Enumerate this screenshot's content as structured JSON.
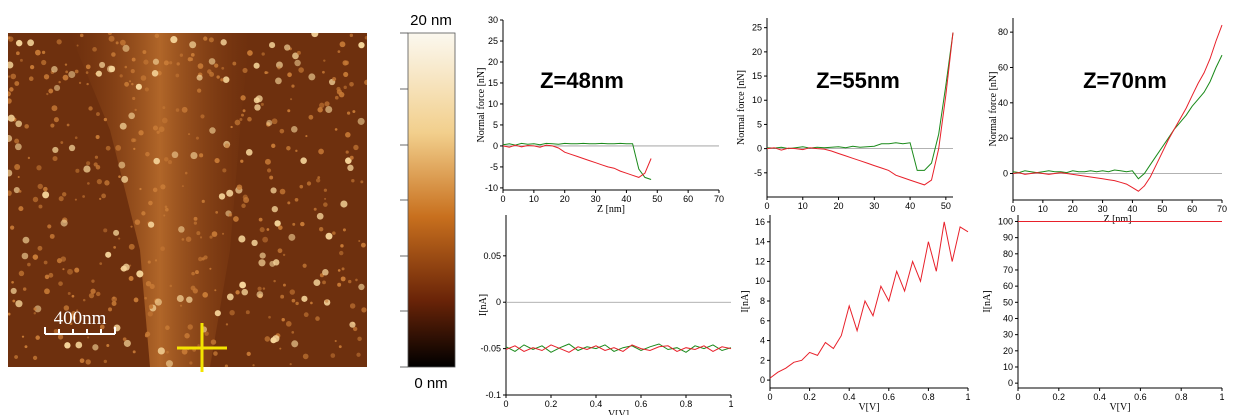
{
  "image": {
    "scale_bar_label": "400nm"
  },
  "colorbar": {
    "max_label": "20 nm",
    "min_label": "0 nm"
  },
  "chart_data": [
    {
      "type": "line",
      "annotation": "Z=48nm",
      "x_label": "Z [nm]",
      "y_label": "Normal force [nN]",
      "xlim": [
        0,
        70
      ],
      "xticks": [
        0,
        10,
        20,
        30,
        40,
        50,
        60,
        70
      ],
      "ylim": [
        -10.5,
        30
      ],
      "yticks": [
        -10,
        -5,
        0,
        5,
        10,
        15,
        20,
        25,
        30
      ],
      "hline": 0,
      "x": [
        0,
        2,
        4,
        6,
        8,
        10,
        12,
        14,
        16,
        18,
        20,
        22,
        24,
        26,
        28,
        30,
        32,
        34,
        36,
        38,
        40,
        42,
        44,
        46,
        48
      ],
      "series": [
        {
          "color": "#1a8a1a",
          "values": [
            0.3,
            0.5,
            0.2,
            0.6,
            0.4,
            0.5,
            0.3,
            0.6,
            0.5,
            0.4,
            0.6,
            0.5,
            0.5,
            0.6,
            0.5,
            0.5,
            0.6,
            0.5,
            0.5,
            0.6,
            0.5,
            0.5,
            -5.5,
            -7.5,
            -8
          ]
        },
        {
          "color": "#e8202a",
          "values": [
            0,
            -0.3,
            0.2,
            -0.2,
            0.1,
            0,
            -0.3,
            0.2,
            0,
            -0.5,
            -1.5,
            -2,
            -2.5,
            -3,
            -3.5,
            -4,
            -4.5,
            -5,
            -5.3,
            -6,
            -6.5,
            -7,
            -7.5,
            -6.5,
            -3
          ]
        }
      ]
    },
    {
      "type": "line",
      "annotation": "Z=55nm",
      "y_label": "Normal force [nN]",
      "xlim": [
        0,
        52
      ],
      "xticks": [
        0,
        10,
        20,
        30,
        40,
        50
      ],
      "ylim": [
        -10,
        27
      ],
      "yticks": [
        -5,
        0,
        5,
        10,
        15,
        20,
        25
      ],
      "hline": 0,
      "x": [
        0,
        2,
        4,
        6,
        8,
        10,
        12,
        14,
        16,
        18,
        20,
        22,
        24,
        26,
        28,
        30,
        32,
        34,
        36,
        38,
        40,
        42,
        44,
        46,
        48,
        50,
        52
      ],
      "series": [
        {
          "color": "#1a8a1a",
          "values": [
            0.2,
            0.1,
            0.3,
            0,
            0.2,
            0.4,
            0.1,
            0.3,
            0.2,
            0.3,
            0.4,
            0.2,
            0.5,
            0.3,
            0.4,
            0.5,
            1,
            1,
            1.2,
            1,
            1.2,
            -4.5,
            -4.5,
            -3,
            3,
            13,
            24
          ]
        },
        {
          "color": "#e8202a",
          "values": [
            0,
            0.2,
            -0.3,
            0.1,
            0,
            -0.2,
            0.2,
            0,
            -0.1,
            -0.5,
            -1,
            -1.5,
            -2,
            -2.5,
            -3,
            -3.5,
            -4,
            -4.5,
            -5.5,
            -6,
            -6.5,
            -7,
            -7.5,
            -6.5,
            0,
            11,
            24
          ]
        }
      ]
    },
    {
      "type": "line",
      "annotation": "Z=70nm",
      "x_label": "Z [nm]",
      "y_label": "Normal force [nN]",
      "xlim": [
        0,
        70
      ],
      "xticks": [
        0,
        10,
        20,
        30,
        40,
        50,
        60,
        70
      ],
      "ylim": [
        -15,
        88
      ],
      "yticks": [
        0,
        20,
        40,
        60,
        80
      ],
      "hline": 0,
      "x": [
        0,
        2,
        4,
        6,
        8,
        10,
        12,
        14,
        16,
        18,
        20,
        22,
        24,
        26,
        28,
        30,
        32,
        34,
        36,
        38,
        40,
        42,
        44,
        46,
        48,
        50,
        52,
        54,
        56,
        58,
        60,
        62,
        64,
        66,
        68,
        70
      ],
      "series": [
        {
          "color": "#1a8a1a",
          "values": [
            1,
            0.5,
            1.5,
            1,
            0.5,
            1,
            1.5,
            1,
            1,
            0.5,
            1.5,
            1,
            1,
            1.5,
            1,
            1.5,
            1,
            2,
            1.5,
            1,
            1.5,
            -3,
            0,
            5,
            10,
            15,
            20,
            25,
            29,
            33,
            38,
            42,
            46,
            52,
            60,
            67
          ]
        },
        {
          "color": "#e8202a",
          "values": [
            0,
            0.5,
            -0.5,
            0,
            0.5,
            0,
            -0.5,
            0,
            0.5,
            0,
            -0.5,
            -1,
            -1.5,
            -2,
            -2.5,
            -3,
            -3.5,
            -4,
            -5,
            -6,
            -8,
            -10,
            -7,
            -2,
            5,
            12,
            19,
            25,
            31,
            37,
            44,
            51,
            57,
            65,
            75,
            84
          ]
        }
      ]
    },
    {
      "type": "line",
      "x_label": "V[V]",
      "y_label": "I[nA]",
      "xlim": [
        0,
        1
      ],
      "xticks": [
        0,
        0.2,
        0.4,
        0.6,
        0.8,
        1
      ],
      "ylim": [
        -0.1,
        0.094
      ],
      "yticks": [
        -0.1,
        -0.05,
        0,
        0.05
      ],
      "hline": 0,
      "x": [
        0,
        0.04,
        0.08,
        0.12,
        0.16,
        0.2,
        0.24,
        0.28,
        0.32,
        0.36,
        0.4,
        0.44,
        0.48,
        0.52,
        0.56,
        0.6,
        0.64,
        0.68,
        0.72,
        0.76,
        0.8,
        0.84,
        0.88,
        0.92,
        0.96,
        1
      ],
      "series": [
        {
          "color": "#1a8a1a",
          "values": [
            -0.048,
            -0.053,
            -0.046,
            -0.051,
            -0.047,
            -0.054,
            -0.049,
            -0.045,
            -0.052,
            -0.048,
            -0.05,
            -0.046,
            -0.053,
            -0.049,
            -0.047,
            -0.052,
            -0.048,
            -0.045,
            -0.051,
            -0.049,
            -0.054,
            -0.047,
            -0.05,
            -0.046,
            -0.052,
            -0.049
          ]
        },
        {
          "color": "#e8202a",
          "values": [
            -0.051,
            -0.047,
            -0.053,
            -0.049,
            -0.052,
            -0.046,
            -0.05,
            -0.054,
            -0.048,
            -0.051,
            -0.047,
            -0.052,
            -0.049,
            -0.053,
            -0.046,
            -0.05,
            -0.052,
            -0.048,
            -0.047,
            -0.053,
            -0.049,
            -0.051,
            -0.047,
            -0.053,
            -0.048,
            -0.05
          ]
        }
      ]
    },
    {
      "type": "line",
      "x_label": "V[V]",
      "y_label": "I[nA]",
      "xlim": [
        0,
        1
      ],
      "xticks": [
        0,
        0.2,
        0.4,
        0.6,
        0.8,
        1
      ],
      "ylim": [
        -0.8,
        16.7
      ],
      "yticks": [
        0,
        2,
        4,
        6,
        8,
        10,
        12,
        14,
        16
      ],
      "x": [
        0,
        0.04,
        0.08,
        0.12,
        0.16,
        0.2,
        0.24,
        0.28,
        0.32,
        0.36,
        0.4,
        0.44,
        0.48,
        0.52,
        0.56,
        0.6,
        0.64,
        0.68,
        0.72,
        0.76,
        0.8,
        0.84,
        0.88,
        0.92,
        0.96,
        1
      ],
      "series": [
        {
          "color": "#e8202a",
          "values": [
            0.2,
            0.8,
            1.2,
            1.8,
            2,
            2.8,
            2.5,
            3.8,
            3.2,
            4.5,
            7.5,
            5,
            8,
            6.5,
            9.5,
            8,
            11,
            9,
            12,
            10,
            14,
            11,
            16,
            12,
            15.5,
            15
          ]
        }
      ]
    },
    {
      "type": "line",
      "x_label": "V[V]",
      "y_label": "I[nA]",
      "xlim": [
        0,
        1
      ],
      "xticks": [
        0,
        0.2,
        0.4,
        0.6,
        0.8,
        1
      ],
      "ylim": [
        -3,
        104
      ],
      "yticks": [
        0,
        10,
        20,
        30,
        40,
        50,
        60,
        70,
        80,
        90,
        100
      ],
      "x": [
        0,
        1
      ],
      "series": [
        {
          "color": "#e8202a",
          "values": [
            100,
            100
          ]
        }
      ]
    }
  ]
}
